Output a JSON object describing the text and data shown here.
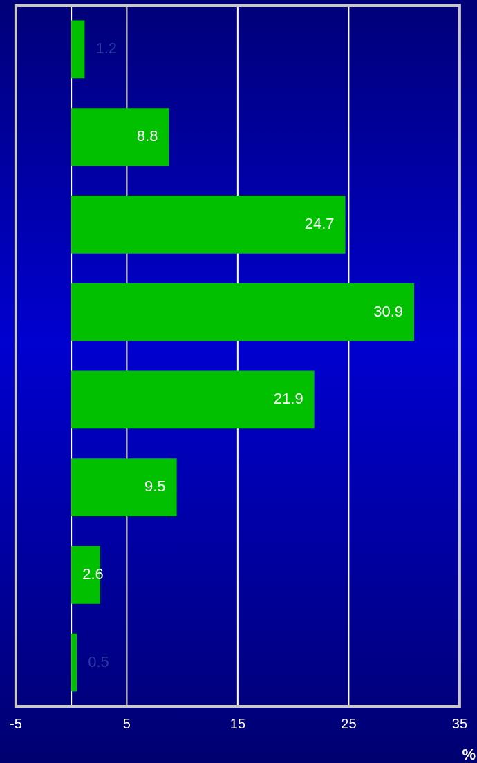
{
  "chart_data": {
    "type": "bar",
    "orientation": "horizontal",
    "xlabel": "%",
    "categories": [
      null,
      null,
      null,
      null,
      null,
      null,
      null,
      null
    ],
    "values": [
      1.2,
      8.8,
      24.7,
      30.9,
      21.9,
      9.5,
      2.6,
      0.5
    ],
    "color": "#00c000",
    "xlim": [
      -5,
      35
    ],
    "xticks": [
      -5,
      5,
      15,
      25,
      35
    ],
    "grid": "x",
    "data_labels": true,
    "legend": false
  }
}
